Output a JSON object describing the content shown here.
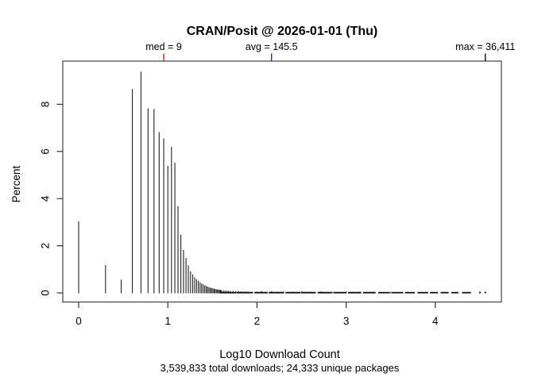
{
  "chart_data": {
    "type": "bar",
    "title": "CRAN/Posit @ 2026-01-01 (Thu)",
    "xlabel": "Log10 Download Count",
    "ylabel": "Percent",
    "subtitle": "3,539,833 total downloads; 24,333 unique packages",
    "xlim": [
      -0.18,
      4.74
    ],
    "ylim": [
      0,
      9.83
    ],
    "grid": false,
    "legend_position": "none",
    "bar_color": "#222222",
    "axis_color": "#333333",
    "x_ticks": [
      "0",
      "1",
      "2",
      "3",
      "4"
    ],
    "y_ticks": [
      "0",
      "2",
      "4",
      "6",
      "8"
    ],
    "annotations": [
      {
        "id": "median",
        "label": "med = 9",
        "x": 0.954,
        "value": 9,
        "color": "#ee1111"
      },
      {
        "id": "average",
        "label": "avg = 145.5",
        "x": 2.163,
        "value": 145.5,
        "color": "#1111ee"
      },
      {
        "id": "maximum",
        "label": "max = 36,411",
        "x": 4.561,
        "value": 36411,
        "color": "#000000"
      }
    ],
    "spikes": [
      [
        0.0,
        3.03
      ],
      [
        0.301,
        1.18
      ],
      [
        0.477,
        0.56
      ],
      [
        0.602,
        8.65
      ],
      [
        0.699,
        9.38
      ],
      [
        0.778,
        7.83
      ],
      [
        0.845,
        7.8
      ],
      [
        0.903,
        6.82
      ],
      [
        0.954,
        6.55
      ],
      [
        1.0,
        5.39
      ],
      [
        1.041,
        6.19
      ],
      [
        1.079,
        5.52
      ],
      [
        1.114,
        3.67
      ],
      [
        1.146,
        2.47
      ],
      [
        1.176,
        1.82
      ],
      [
        1.204,
        1.48
      ],
      [
        1.23,
        1.17
      ],
      [
        1.255,
        0.92
      ],
      [
        1.279,
        0.78
      ],
      [
        1.301,
        0.66
      ],
      [
        1.322,
        0.58
      ],
      [
        1.342,
        0.51
      ],
      [
        1.362,
        0.45
      ],
      [
        1.38,
        0.4
      ],
      [
        1.398,
        0.36
      ],
      [
        1.415,
        0.32
      ],
      [
        1.431,
        0.29
      ],
      [
        1.447,
        0.27
      ],
      [
        1.462,
        0.24
      ],
      [
        1.477,
        0.22
      ],
      [
        1.491,
        0.21
      ],
      [
        1.505,
        0.19
      ],
      [
        1.519,
        0.18
      ],
      [
        1.531,
        0.16
      ],
      [
        1.544,
        0.15
      ],
      [
        1.556,
        0.14
      ],
      [
        1.568,
        0.14
      ],
      [
        1.58,
        0.13
      ],
      [
        1.591,
        0.12
      ],
      [
        1.602,
        0.12
      ],
      [
        1.623,
        0.11
      ],
      [
        1.643,
        0.1
      ],
      [
        1.663,
        0.09
      ],
      [
        1.681,
        0.09
      ],
      [
        1.699,
        0.08
      ],
      [
        1.732,
        0.08
      ],
      [
        1.763,
        0.07
      ],
      [
        1.792,
        0.07
      ],
      [
        1.82,
        0.06
      ],
      [
        1.845,
        0.06
      ],
      [
        1.875,
        0.06
      ],
      [
        1.903,
        0.05
      ],
      [
        1.95,
        0.05
      ],
      [
        2.0,
        0.05
      ],
      [
        2.05,
        0.08
      ],
      [
        2.1,
        0.05
      ],
      [
        2.163,
        0.07
      ],
      [
        2.23,
        0.05
      ],
      [
        2.3,
        0.06
      ],
      [
        2.4,
        0.05
      ],
      [
        2.5,
        0.06
      ],
      [
        2.6,
        0.05
      ],
      [
        2.72,
        0.06
      ],
      [
        2.85,
        0.05
      ],
      [
        3.0,
        0.06
      ],
      [
        3.15,
        0.05
      ],
      [
        3.3,
        0.05
      ],
      [
        3.5,
        0.05
      ],
      [
        3.7,
        0.04
      ],
      [
        3.9,
        0.04
      ],
      [
        4.1,
        0.04
      ]
    ],
    "tail_segments": [
      [
        1.58,
        1.76
      ],
      [
        1.77,
        1.95
      ],
      [
        1.97,
        2.12
      ],
      [
        2.13,
        2.3
      ],
      [
        2.32,
        2.49
      ],
      [
        2.5,
        2.66
      ],
      [
        2.68,
        2.84
      ],
      [
        2.86,
        3.0
      ],
      [
        3.02,
        3.17
      ],
      [
        3.19,
        3.33
      ],
      [
        3.36,
        3.49
      ],
      [
        3.51,
        3.64
      ],
      [
        3.66,
        3.77
      ],
      [
        3.8,
        3.92
      ],
      [
        3.94,
        4.03
      ],
      [
        4.06,
        4.15
      ],
      [
        4.18,
        4.26
      ],
      [
        4.3,
        4.4
      ]
    ],
    "tail_dots": [
      4.5,
      4.561
    ]
  }
}
